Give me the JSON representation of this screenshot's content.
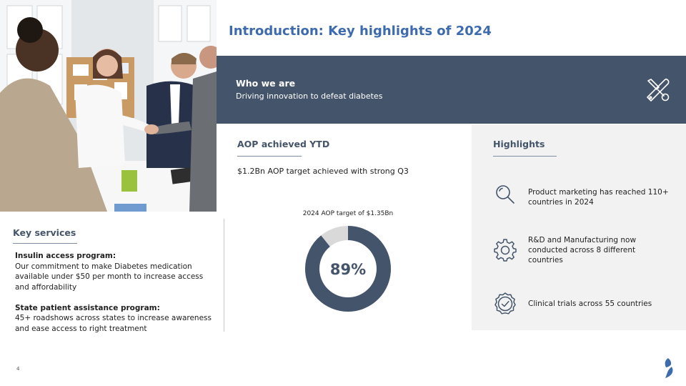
{
  "title": "Introduction: Key highlights of 2024",
  "who_we_are": {
    "heading": "Who we are",
    "subheading": "Driving innovation to defeat diabetes",
    "icon": "tools-icon"
  },
  "aop": {
    "heading": "AOP achieved YTD",
    "summary": "$1.2Bn AOP target achieved with strong Q3",
    "chart_caption": "2024 AOP target of $1.35Bn",
    "percent_label": "89%"
  },
  "chart_data": {
    "type": "pie",
    "title": "2024 AOP target of $1.35Bn",
    "center_label": "89%",
    "slices": [
      {
        "label": "Achieved",
        "value": 89,
        "color": "#44546a"
      },
      {
        "label": "Remaining",
        "value": 11,
        "color": "#d9d9d9"
      }
    ]
  },
  "highlights": {
    "heading": "Highlights",
    "items": [
      {
        "icon": "magnifier-icon",
        "text": "Product marketing has reached 110+ countries in 2024"
      },
      {
        "icon": "gear-icon",
        "text": "R&D and Manufacturing now conducted across 8 different countries"
      },
      {
        "icon": "checkmark-badge-icon",
        "text": "Clinical trials across 55 countries"
      }
    ]
  },
  "key_services": {
    "heading": "Key services",
    "items": [
      {
        "title": "Insulin access program:",
        "body": "Our commitment to make Diabetes medication available under $50 per month to increase access and affordability"
      },
      {
        "title": "State patient assistance program:",
        "body": "45+ roadshows across states to increase awareness and ease access to right treatment"
      }
    ]
  },
  "footer": {
    "page_number": "4",
    "logo_icon": "droplet-logo-icon"
  },
  "colors": {
    "accent_title": "#3d6bad",
    "band": "#44546a",
    "donut_fill": "#44546a",
    "donut_track": "#d9d9d9",
    "highlights_bg": "#f2f2f2",
    "logo": "#3d6bad"
  }
}
